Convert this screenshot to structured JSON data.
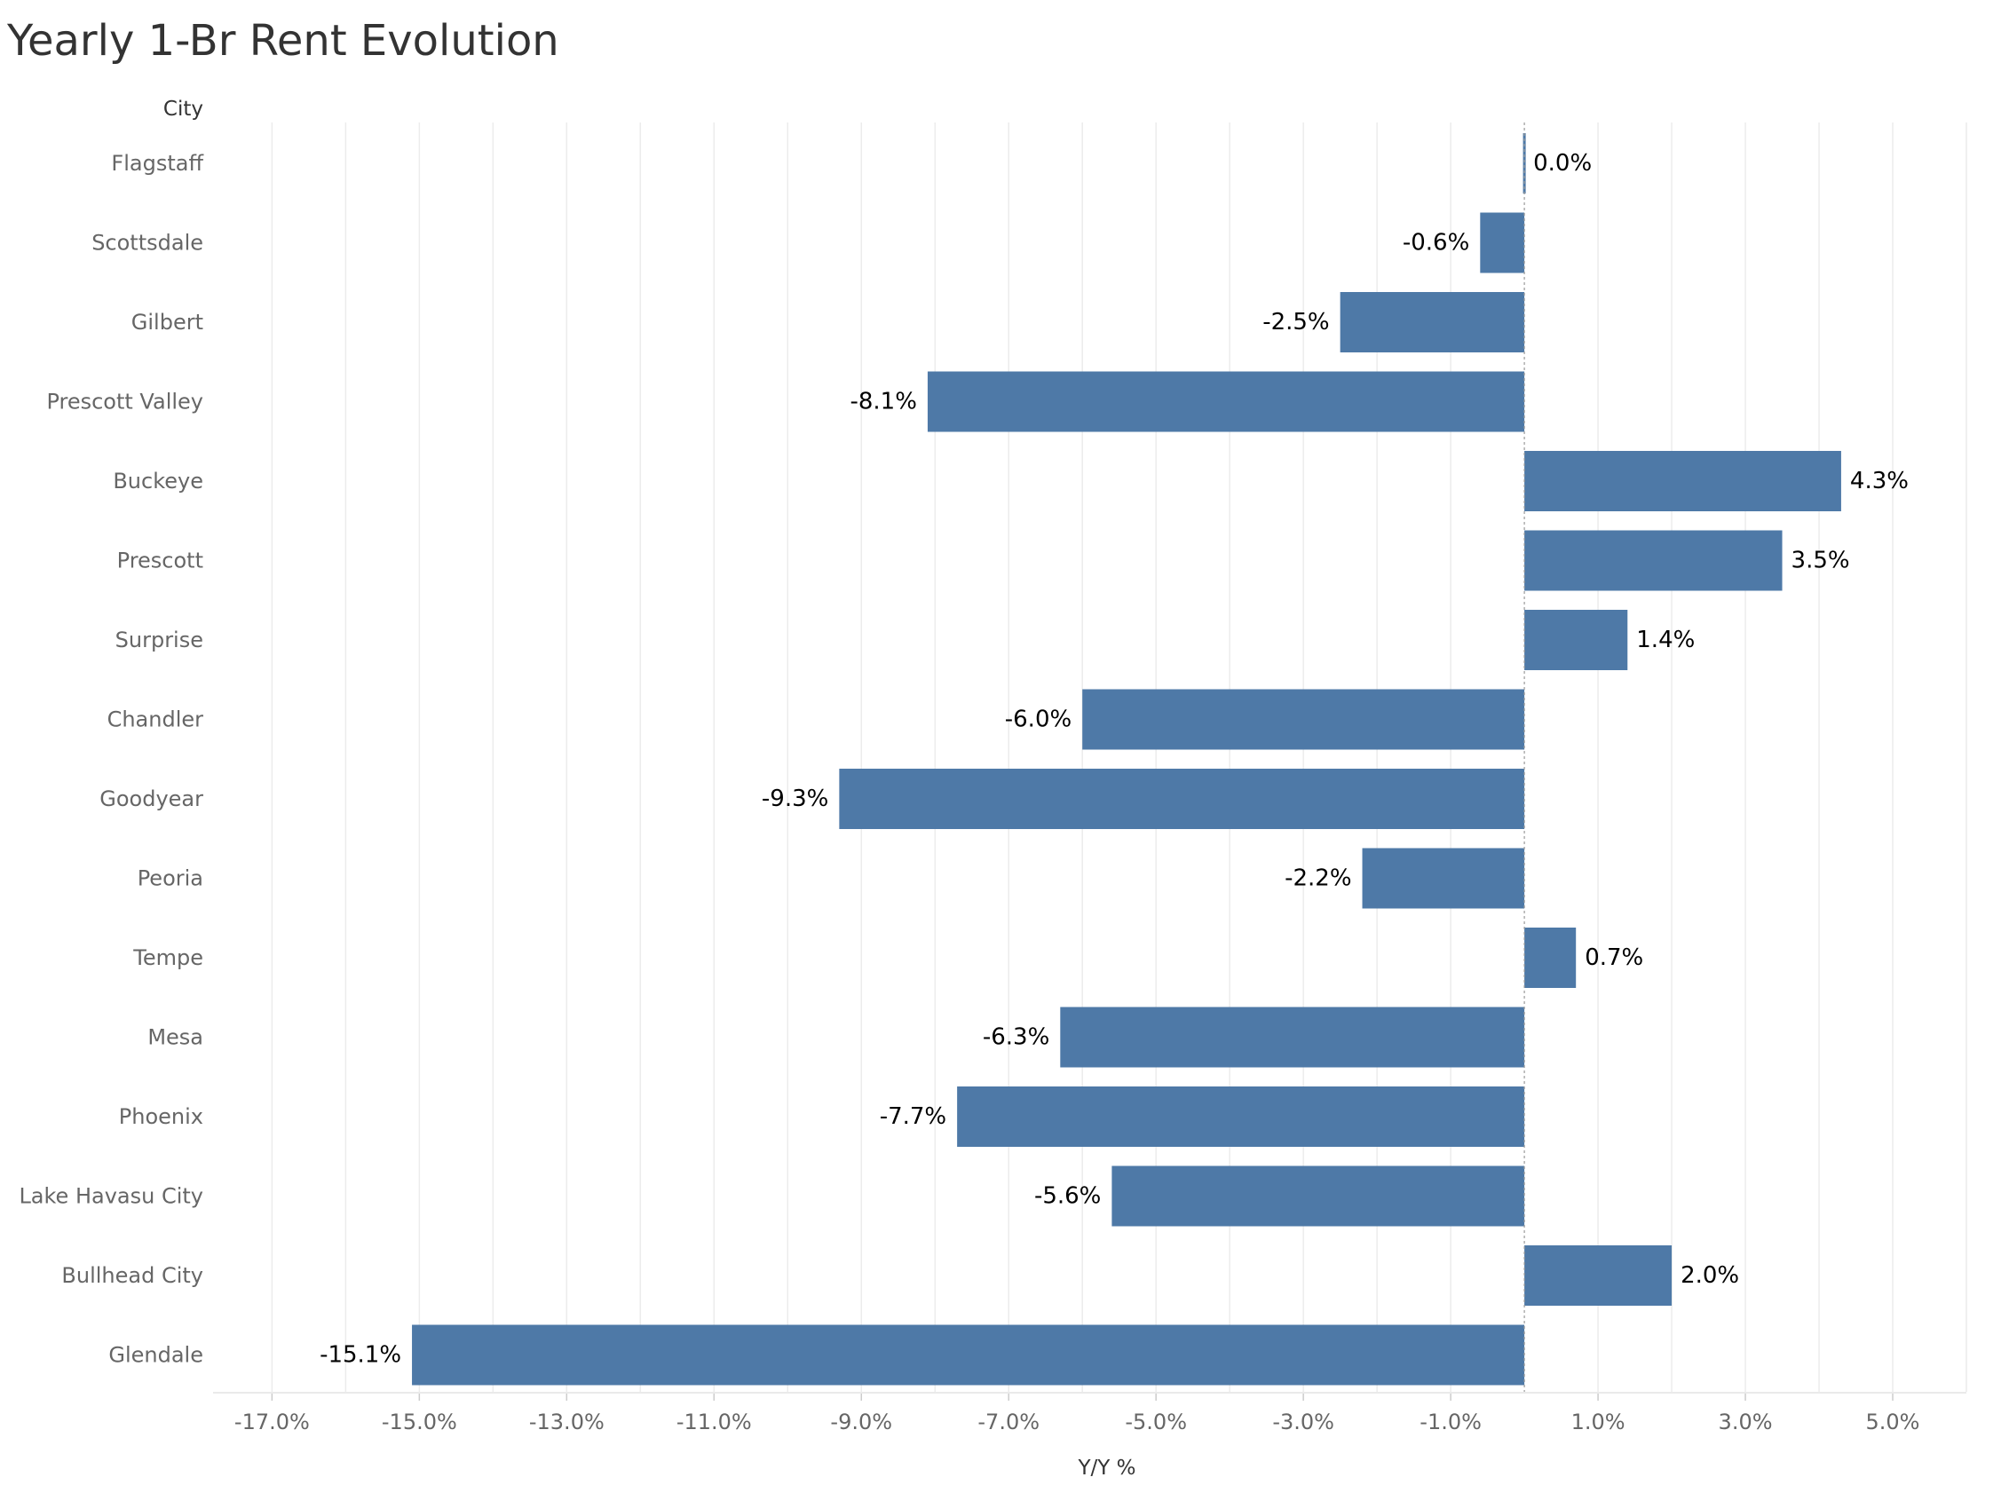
{
  "chart_data": {
    "type": "bar",
    "orientation": "horizontal",
    "title": "Yearly 1-Br Rent Evolution",
    "row_header": "City",
    "xlabel": "Y/Y %",
    "ylabel": "City",
    "xlim": [
      -17.8,
      6.0
    ],
    "grid": true,
    "bar_color": "#4e79a7",
    "categories": [
      "Flagstaff",
      "Scottsdale",
      "Gilbert",
      "Prescott Valley",
      "Buckeye",
      "Prescott",
      "Surprise",
      "Chandler",
      "Goodyear",
      "Peoria",
      "Tempe",
      "Mesa",
      "Phoenix",
      "Lake Havasu City",
      "Bullhead City",
      "Glendale"
    ],
    "values": [
      0.0,
      -0.6,
      -2.5,
      -8.1,
      4.3,
      3.5,
      1.4,
      -6.0,
      -9.3,
      -2.2,
      0.7,
      -6.3,
      -7.7,
      -5.6,
      2.0,
      -15.1
    ],
    "value_labels": [
      "0.0%",
      "-0.6%",
      "-2.5%",
      "-8.1%",
      "4.3%",
      "3.5%",
      "1.4%",
      "-6.0%",
      "-9.3%",
      "-2.2%",
      "0.7%",
      "-6.3%",
      "-7.7%",
      "-5.6%",
      "2.0%",
      "-15.1%"
    ],
    "x_ticks": [
      -17,
      -15,
      -13,
      -11,
      -9,
      -7,
      -5,
      -3,
      -1,
      1,
      3,
      5
    ],
    "x_tick_labels": [
      "-17.0%",
      "-15.0%",
      "-13.0%",
      "-11.0%",
      "-9.0%",
      "-7.0%",
      "-5.0%",
      "-3.0%",
      "-1.0%",
      "1.0%",
      "3.0%",
      "5.0%"
    ]
  }
}
